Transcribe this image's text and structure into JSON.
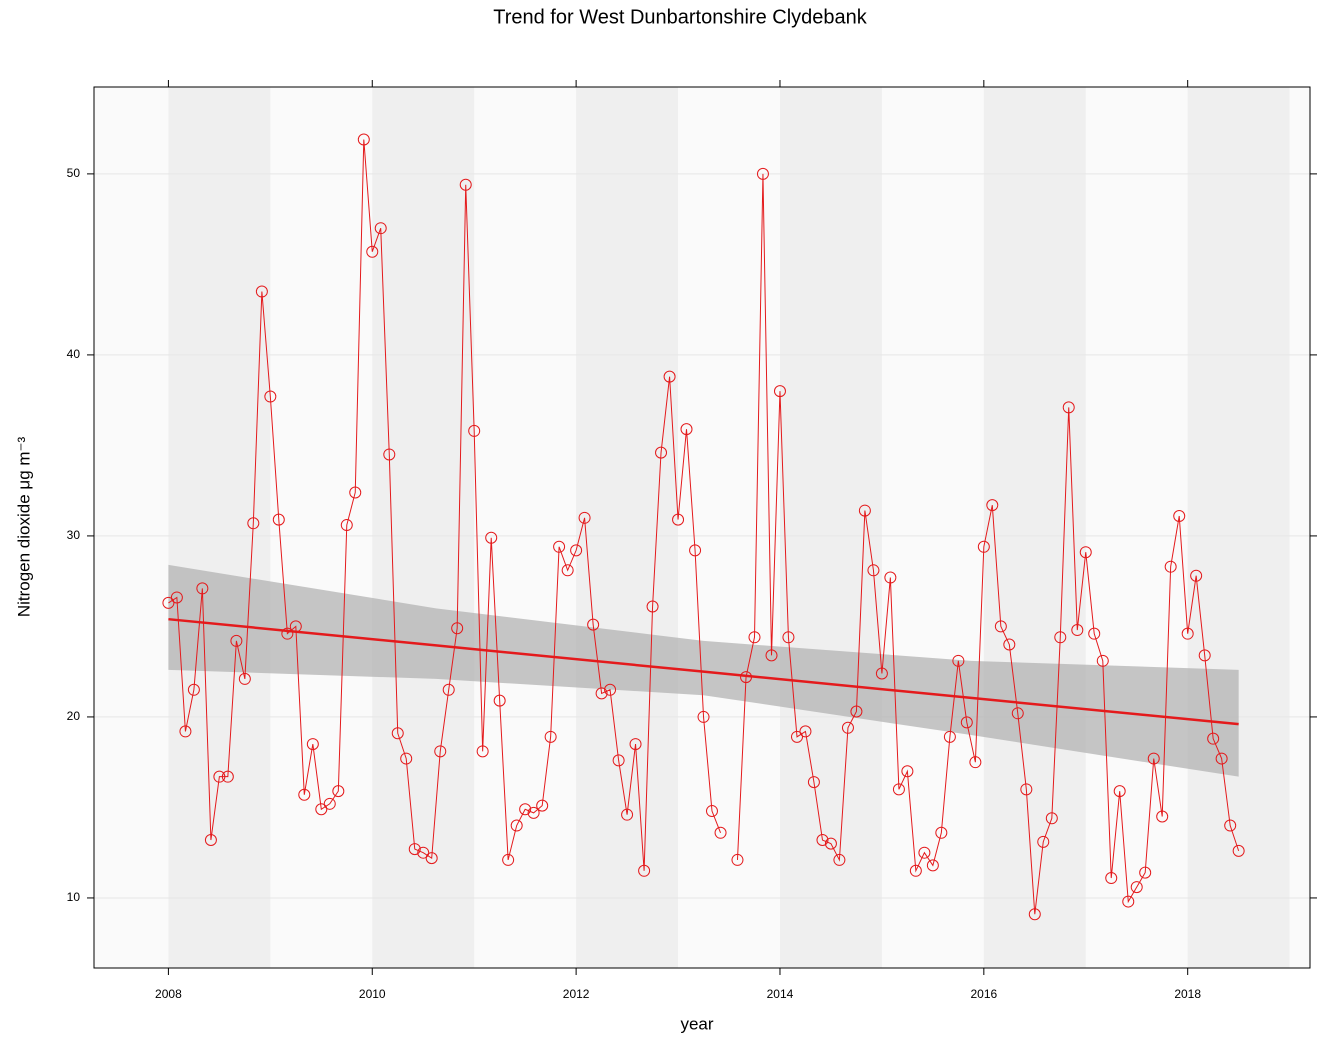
{
  "chart_data": {
    "type": "line",
    "title": "Trend for West Dunbartonshire Clydebank",
    "x_label": "year",
    "y_label": "Nitrogen dioxide μg m⁻³",
    "color": "#e41a1c",
    "x": [
      2008,
      2008.083,
      2008.167,
      2008.25,
      2008.333,
      2008.417,
      2008.5,
      2008.583,
      2008.667,
      2008.75,
      2008.833,
      2008.917,
      2009,
      2009.083,
      2009.167,
      2009.25,
      2009.333,
      2009.417,
      2009.5,
      2009.583,
      2009.667,
      2009.75,
      2009.833,
      2009.917,
      2010,
      2010.083,
      2010.167,
      2010.25,
      2010.333,
      2010.417,
      2010.5,
      2010.583,
      2010.667,
      2010.75,
      2010.833,
      2010.917,
      2011,
      2011.083,
      2011.167,
      2011.25,
      2011.333,
      2011.417,
      2011.5,
      2011.583,
      2011.667,
      2011.75,
      2011.833,
      2011.917,
      2012,
      2012.083,
      2012.167,
      2012.25,
      2012.333,
      2012.417,
      2012.5,
      2012.583,
      2012.667,
      2012.75,
      2012.833,
      2012.917,
      2013,
      2013.083,
      2013.167,
      2013.25,
      2013.333,
      2013.417,
      2013.5,
      2013.583,
      2013.667,
      2013.75,
      2013.833,
      2013.917,
      2014,
      2014.083,
      2014.167,
      2014.25,
      2014.333,
      2014.417,
      2014.5,
      2014.583,
      2014.667,
      2014.75,
      2014.833,
      2014.917,
      2015,
      2015.083,
      2015.167,
      2015.25,
      2015.333,
      2015.417,
      2015.5,
      2015.583,
      2015.667,
      2015.75,
      2015.833,
      2015.917,
      2016,
      2016.083,
      2016.167,
      2016.25,
      2016.333,
      2016.417,
      2016.5,
      2016.583,
      2016.667,
      2016.75,
      2016.833,
      2016.917,
      2017,
      2017.083,
      2017.167,
      2017.25,
      2017.333,
      2017.417,
      2017.5,
      2017.583,
      2017.667,
      2017.75,
      2017.833,
      2017.917,
      2018,
      2018.083,
      2018.167,
      2018.25,
      2018.333,
      2018.417,
      2018.5
    ],
    "values": [
      26.3,
      26.6,
      19.2,
      21.5,
      27.1,
      13.2,
      16.7,
      16.7,
      24.2,
      22.1,
      30.7,
      43.5,
      37.7,
      30.9,
      24.6,
      25.0,
      15.7,
      18.5,
      14.9,
      15.2,
      15.9,
      30.6,
      32.4,
      51.9,
      45.7,
      47.0,
      34.5,
      19.1,
      17.7,
      12.7,
      12.5,
      12.2,
      18.1,
      21.5,
      24.9,
      49.4,
      35.8,
      18.1,
      29.9,
      20.9,
      12.1,
      14.0,
      14.9,
      14.7,
      15.1,
      18.9,
      29.4,
      28.1,
      29.2,
      31.0,
      25.1,
      21.3,
      21.5,
      17.6,
      14.6,
      18.5,
      11.5,
      26.1,
      34.6,
      38.8,
      30.9,
      35.9,
      29.2,
      20.0,
      14.8,
      13.6,
      null,
      12.1,
      22.2,
      24.4,
      50.0,
      23.4,
      38.0,
      24.4,
      18.9,
      19.2,
      16.4,
      13.2,
      13.0,
      12.1,
      19.4,
      20.3,
      31.4,
      28.1,
      22.4,
      27.7,
      16.0,
      17.0,
      11.5,
      12.5,
      11.8,
      13.6,
      18.9,
      23.1,
      19.7,
      17.5,
      29.4,
      31.7,
      25.0,
      24.0,
      20.2,
      16.0,
      9.1,
      13.1,
      14.4,
      24.4,
      37.1,
      24.8,
      29.1,
      24.6,
      23.1,
      11.1,
      15.9,
      9.8,
      10.6,
      11.4,
      17.7,
      14.5,
      28.3,
      31.1,
      24.6,
      27.8,
      23.4,
      18.8,
      17.7,
      14.0,
      12.6
    ],
    "trend": {
      "color": "#e41a1c",
      "band_color": "#b3b3b3",
      "x": [
        2008,
        2010.625,
        2013.25,
        2015.875,
        2018.5
      ],
      "values": [
        25.4,
        23.95,
        22.5,
        21.05,
        19.6
      ],
      "lower": [
        22.6,
        22.1,
        21.2,
        19.0,
        16.7
      ],
      "upper": [
        28.4,
        26.0,
        24.2,
        23.1,
        22.6
      ]
    },
    "xlim": [
      2007.27,
      2019.2
    ],
    "ylim": [
      6.13,
      54.8
    ],
    "xticks": [
      2008,
      2010,
      2012,
      2014,
      2016,
      2018
    ],
    "yticks": [
      10,
      20,
      30,
      40,
      50
    ],
    "grid": true
  }
}
